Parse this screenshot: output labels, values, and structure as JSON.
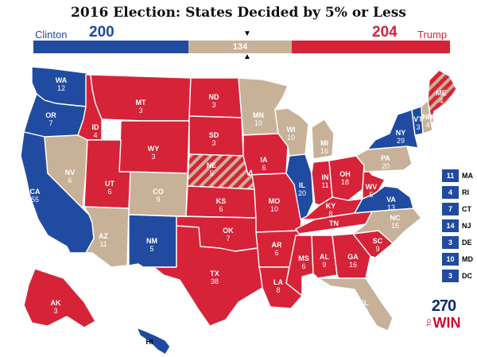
{
  "title": "2016 Election: States Decided by 5% or Less",
  "colors": {
    "clinton": "#204ba0",
    "trump": "#d62338",
    "tossup": "#c7b299"
  },
  "bar": {
    "clinton_name": "Clinton",
    "clinton_total": "200",
    "tossup_total": "134",
    "trump_total": "204",
    "trump_name": "Trump",
    "clinton_value": 200,
    "tossup_value": 134,
    "trump_value": 204
  },
  "states": [
    {
      "id": "WA",
      "ev": "12",
      "status": "clinton"
    },
    {
      "id": "OR",
      "ev": "7",
      "status": "clinton"
    },
    {
      "id": "CA",
      "ev": "55",
      "status": "clinton"
    },
    {
      "id": "NV",
      "ev": "6",
      "status": "tossup"
    },
    {
      "id": "ID",
      "ev": "4",
      "status": "trump"
    },
    {
      "id": "MT",
      "ev": "3",
      "status": "trump"
    },
    {
      "id": "WY",
      "ev": "3",
      "status": "trump"
    },
    {
      "id": "UT",
      "ev": "6",
      "status": "trump"
    },
    {
      "id": "AZ",
      "ev": "11",
      "status": "tossup"
    },
    {
      "id": "CO",
      "ev": "9",
      "status": "tossup"
    },
    {
      "id": "NM",
      "ev": "5",
      "status": "clinton"
    },
    {
      "id": "ND",
      "ev": "3",
      "status": "trump"
    },
    {
      "id": "SD",
      "ev": "3",
      "status": "trump"
    },
    {
      "id": "NE",
      "ev": "5",
      "status": "split"
    },
    {
      "id": "KS",
      "ev": "6",
      "status": "trump"
    },
    {
      "id": "OK",
      "ev": "7",
      "status": "trump"
    },
    {
      "id": "TX",
      "ev": "38",
      "status": "trump"
    },
    {
      "id": "MN",
      "ev": "10",
      "status": "tossup"
    },
    {
      "id": "IA",
      "ev": "6",
      "status": "trump"
    },
    {
      "id": "MO",
      "ev": "10",
      "status": "trump"
    },
    {
      "id": "AR",
      "ev": "6",
      "status": "trump"
    },
    {
      "id": "LA",
      "ev": "8",
      "status": "trump"
    },
    {
      "id": "WI",
      "ev": "10",
      "status": "tossup"
    },
    {
      "id": "IL",
      "ev": "20",
      "status": "clinton"
    },
    {
      "id": "MI",
      "ev": "16",
      "status": "tossup"
    },
    {
      "id": "IN",
      "ev": "11",
      "status": "trump"
    },
    {
      "id": "OH",
      "ev": "18",
      "status": "trump"
    },
    {
      "id": "KY",
      "ev": "8",
      "status": "trump"
    },
    {
      "id": "TN",
      "ev": "11",
      "status": "trump"
    },
    {
      "id": "MS",
      "ev": "6",
      "status": "trump"
    },
    {
      "id": "AL",
      "ev": "9",
      "status": "trump"
    },
    {
      "id": "GA",
      "ev": "16",
      "status": "trump"
    },
    {
      "id": "FL",
      "ev": "29",
      "status": "tossup"
    },
    {
      "id": "SC",
      "ev": "9",
      "status": "trump"
    },
    {
      "id": "NC",
      "ev": "15",
      "status": "tossup"
    },
    {
      "id": "VA",
      "ev": "13",
      "status": "clinton"
    },
    {
      "id": "WV",
      "ev": "5",
      "status": "trump"
    },
    {
      "id": "PA",
      "ev": "20",
      "status": "tossup"
    },
    {
      "id": "NY",
      "ev": "29",
      "status": "clinton"
    },
    {
      "id": "VT",
      "ev": "3",
      "status": "clinton"
    },
    {
      "id": "NH",
      "ev": "4",
      "status": "tossup"
    },
    {
      "id": "ME",
      "ev": "4",
      "status": "split"
    },
    {
      "id": "AK",
      "ev": "3",
      "status": "trump"
    },
    {
      "id": "HI",
      "ev": "4",
      "status": "clinton"
    }
  ],
  "small_states": [
    {
      "ev": "11",
      "state": "MA",
      "status": "clinton"
    },
    {
      "ev": "4",
      "state": "RI",
      "status": "clinton"
    },
    {
      "ev": "7",
      "state": "CT",
      "status": "clinton"
    },
    {
      "ev": "14",
      "state": "NJ",
      "status": "clinton"
    },
    {
      "ev": "3",
      "state": "DE",
      "status": "clinton"
    },
    {
      "ev": "10",
      "state": "MD",
      "status": "clinton"
    },
    {
      "ev": "3",
      "state": "DC",
      "status": "clinton"
    }
  ],
  "logo": {
    "number": "270",
    "to": "TO",
    "win": "WIN"
  }
}
